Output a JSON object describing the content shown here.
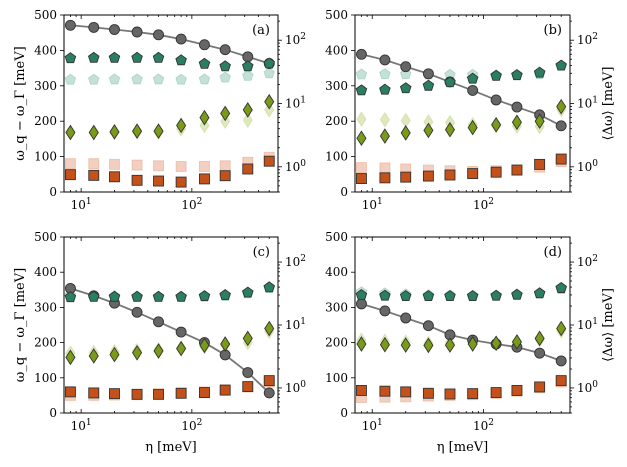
{
  "chart_data": [
    {
      "type": "scatter",
      "panel": "(a)",
      "x": [
        8,
        13,
        20,
        32,
        50,
        80,
        130,
        200,
        320,
        500
      ],
      "xlabel": "",
      "ylabel": "ω_q − ω_Γ [meV]",
      "xlim": [
        7,
        600
      ],
      "ylim_left": [
        0,
        500
      ],
      "ylim_right": [
        0.4,
        250
      ],
      "xticks": [
        "10^1",
        "10^2"
      ],
      "yticks_left": [
        "0",
        "100",
        "200",
        "300",
        "400",
        "500"
      ],
      "yticks_right": [
        "10^0",
        "10^1",
        "10^2"
      ],
      "series": [
        {
          "name": "gray circles (left axis)",
          "marker": "circle",
          "axis": "left",
          "color": "#666666",
          "line": true,
          "values": [
            471,
            465,
            459,
            452,
            444,
            432,
            416,
            402,
            382,
            363
          ]
        },
        {
          "name": "green pentagons",
          "marker": "pentagon",
          "axis": "left",
          "color": "#2a7f62",
          "values": [
            378,
            379,
            379,
            379,
            379,
            372,
            362,
            355,
            355,
            363
          ]
        },
        {
          "name": "light green pentagons",
          "marker": "pentagon",
          "axis": "left",
          "color": "#93c8b5",
          "faint": true,
          "values": [
            317,
            317,
            318,
            318,
            318,
            317,
            318,
            323,
            328,
            335
          ]
        },
        {
          "name": "olive diamonds",
          "marker": "diamond",
          "axis": "left",
          "color": "#7a9a1a",
          "values": [
            168,
            168,
            170,
            172,
            172,
            188,
            210,
            222,
            232,
            255
          ]
        },
        {
          "name": "light olive diamonds",
          "marker": "diamond",
          "axis": "left",
          "color": "#c6d68a",
          "faint": true,
          "values": [
            169,
            169,
            168,
            170,
            169,
            178,
            188,
            200,
            203,
            232
          ]
        },
        {
          "name": "light orange squares",
          "marker": "square",
          "axis": "left",
          "color": "#e8a88c",
          "faint": true,
          "values": [
            80,
            80,
            78,
            76,
            74,
            72,
            72,
            74,
            84,
            98
          ]
        },
        {
          "name": "orange squares",
          "marker": "square",
          "axis": "left",
          "color": "#c4511a",
          "values": [
            49,
            47,
            43,
            33,
            31,
            28,
            37,
            46,
            65,
            87
          ]
        }
      ]
    },
    {
      "type": "scatter",
      "panel": "(b)",
      "x": [
        8,
        13,
        20,
        32,
        50,
        80,
        130,
        200,
        320,
        500
      ],
      "xlabel": "",
      "ylabel_right": "⟨Δω⟩ [meV]",
      "xlim": [
        7,
        600
      ],
      "ylim_left": [
        0,
        500
      ],
      "ylim_right": [
        0.4,
        250
      ],
      "xticks": [
        "10^1",
        "10^2"
      ],
      "yticks_left": [
        "0",
        "100",
        "200",
        "300",
        "400",
        "500"
      ],
      "yticks_right": [
        "10^0",
        "10^1",
        "10^2"
      ],
      "series": [
        {
          "name": "gray circles",
          "marker": "circle",
          "axis": "left",
          "color": "#666666",
          "line": true,
          "values": [
            389,
            373,
            354,
            334,
            311,
            287,
            260,
            240,
            218,
            187
          ]
        },
        {
          "name": "green pentagons",
          "marker": "pentagon",
          "axis": "left",
          "color": "#2a7f62",
          "values": [
            287,
            289,
            293,
            300,
            310,
            320,
            328,
            330,
            337,
            357
          ]
        },
        {
          "name": "light green pentagons",
          "marker": "pentagon",
          "axis": "left",
          "color": "#93c8b5",
          "faint": true,
          "values": [
            332,
            333,
            333,
            332,
            331,
            331,
            330,
            331,
            333,
            357
          ]
        },
        {
          "name": "olive diamonds",
          "marker": "diamond",
          "axis": "left",
          "color": "#7a9a1a",
          "values": [
            152,
            158,
            167,
            174,
            176,
            182,
            190,
            197,
            200,
            241
          ]
        },
        {
          "name": "light olive diamonds",
          "marker": "diamond",
          "axis": "left",
          "color": "#c6d68a",
          "faint": true,
          "values": [
            206,
            204,
            202,
            198,
            196,
            190,
            187,
            186,
            185,
            233
          ]
        },
        {
          "name": "light orange squares",
          "marker": "square",
          "axis": "left",
          "color": "#e8a88c",
          "faint": true,
          "values": [
            69,
            68,
            65,
            62,
            60,
            58,
            60,
            62,
            70,
            86
          ]
        },
        {
          "name": "orange squares",
          "marker": "square",
          "axis": "left",
          "color": "#c4511a",
          "values": [
            38,
            40,
            42,
            45,
            48,
            52,
            56,
            62,
            78,
            93
          ]
        }
      ]
    },
    {
      "type": "scatter",
      "panel": "(c)",
      "x": [
        8,
        13,
        20,
        32,
        50,
        80,
        130,
        200,
        320,
        500
      ],
      "xlabel": "η [meV]",
      "ylabel": "ω_q − ω_Γ [meV]",
      "xlim": [
        7,
        600
      ],
      "ylim_left": [
        0,
        500
      ],
      "ylim_right": [
        0.4,
        250
      ],
      "xticks": [
        "10^1",
        "10^2"
      ],
      "yticks_left": [
        "0",
        "100",
        "200",
        "300",
        "400",
        "500"
      ],
      "yticks_right": [
        "10^0",
        "10^1",
        "10^2"
      ],
      "series": [
        {
          "name": "gray circles",
          "marker": "circle",
          "axis": "left",
          "color": "#666666",
          "line": true,
          "values": [
            354,
            333,
            312,
            286,
            259,
            230,
            200,
            165,
            115,
            57
          ]
        },
        {
          "name": "green pentagons",
          "marker": "pentagon",
          "axis": "left",
          "color": "#2a7f62",
          "values": [
            329,
            330,
            330,
            330,
            330,
            330,
            332,
            335,
            342,
            357
          ]
        },
        {
          "name": "light green pentagons",
          "marker": "pentagon",
          "axis": "left",
          "color": "#93c8b5",
          "faint": true,
          "values": [
            334,
            333,
            332,
            331,
            330,
            330,
            330,
            332,
            340,
            355
          ]
        },
        {
          "name": "olive diamonds",
          "marker": "diamond",
          "axis": "left",
          "color": "#7a9a1a",
          "values": [
            158,
            162,
            166,
            171,
            176,
            183,
            192,
            196,
            212,
            240
          ]
        },
        {
          "name": "light olive diamonds",
          "marker": "diamond",
          "axis": "left",
          "color": "#c6d68a",
          "faint": true,
          "values": [
            170,
            172,
            174,
            177,
            180,
            185,
            188,
            193,
            200,
            232
          ]
        },
        {
          "name": "light orange squares",
          "marker": "square",
          "axis": "left",
          "color": "#e8a88c",
          "faint": true,
          "values": [
            50,
            50,
            51,
            52,
            54,
            57,
            60,
            66,
            74,
            88
          ]
        },
        {
          "name": "orange squares",
          "marker": "square",
          "axis": "left",
          "color": "#c4511a",
          "values": [
            60,
            57,
            55,
            53,
            53,
            56,
            58,
            65,
            75,
            92
          ]
        }
      ]
    },
    {
      "type": "scatter",
      "panel": "(d)",
      "x": [
        8,
        13,
        20,
        32,
        50,
        80,
        130,
        200,
        320,
        500
      ],
      "xlabel": "η [meV]",
      "ylabel_right": "⟨Δω⟩ [meV]",
      "xlim": [
        7,
        600
      ],
      "ylim_left": [
        0,
        500
      ],
      "ylim_right": [
        0.4,
        250
      ],
      "xticks": [
        "10^1",
        "10^2"
      ],
      "yticks_left": [
        "0",
        "100",
        "200",
        "300",
        "400",
        "500"
      ],
      "yticks_right": [
        "10^0",
        "10^1",
        "10^2"
      ],
      "series": [
        {
          "name": "gray circles",
          "marker": "circle",
          "axis": "left",
          "color": "#666666",
          "line": true,
          "values": [
            310,
            290,
            270,
            248,
            222,
            207,
            196,
            187,
            170,
            148
          ]
        },
        {
          "name": "green pentagons",
          "marker": "pentagon",
          "axis": "left",
          "color": "#2a7f62",
          "values": [
            335,
            333,
            332,
            332,
            332,
            332,
            333,
            336,
            340,
            355
          ]
        },
        {
          "name": "light green pentagons",
          "marker": "pentagon",
          "axis": "left",
          "color": "#93c8b5",
          "faint": true,
          "values": [
            343,
            340,
            337,
            335,
            334,
            333,
            333,
            335,
            340,
            352
          ]
        },
        {
          "name": "olive diamonds",
          "marker": "diamond",
          "axis": "left",
          "color": "#7a9a1a",
          "values": [
            196,
            194,
            193,
            192,
            193,
            196,
            198,
            202,
            212,
            240
          ]
        },
        {
          "name": "light olive diamonds",
          "marker": "diamond",
          "axis": "left",
          "color": "#c6d68a",
          "faint": true,
          "values": [
            207,
            204,
            201,
            198,
            198,
            197,
            198,
            200,
            208,
            234
          ]
        },
        {
          "name": "light orange squares",
          "marker": "square",
          "axis": "left",
          "color": "#e8a88c",
          "faint": true,
          "values": [
            44,
            45,
            46,
            48,
            50,
            52,
            56,
            62,
            72,
            88
          ]
        },
        {
          "name": "orange squares",
          "marker": "square",
          "axis": "left",
          "color": "#c4511a",
          "values": [
            64,
            62,
            60,
            56,
            54,
            55,
            58,
            64,
            74,
            92
          ]
        }
      ]
    }
  ]
}
